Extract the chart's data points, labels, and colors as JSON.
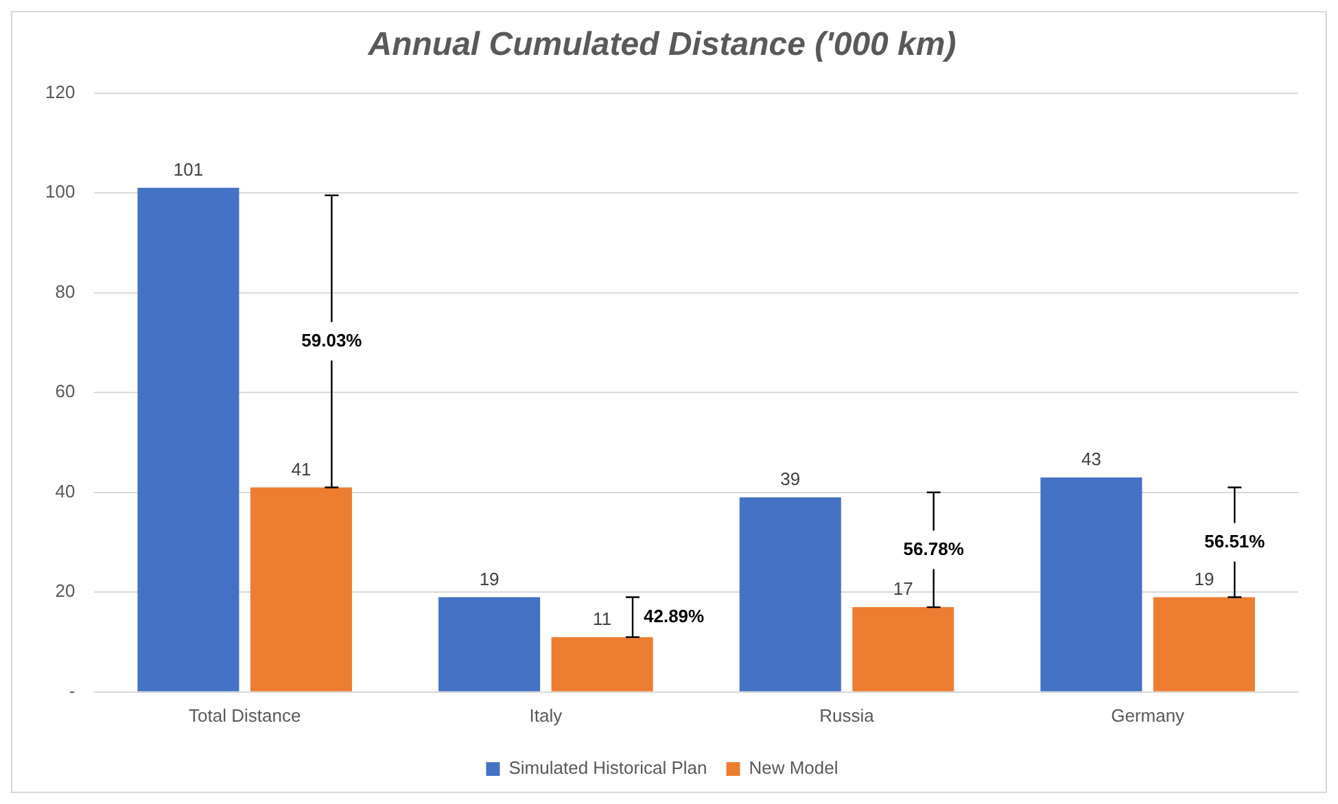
{
  "chart_data": {
    "type": "bar",
    "title": "Annual Cumulated Distance ('000 km)",
    "categories": [
      "Total Distance",
      "Italy",
      "Russia",
      "Germany"
    ],
    "series": [
      {
        "name": "Simulated Historical Plan",
        "color": "#4472c4",
        "values": [
          101,
          19,
          39,
          43
        ]
      },
      {
        "name": "New Model",
        "color": "#ed7d31",
        "values": [
          41,
          11,
          17,
          19
        ],
        "errors": [
          [
            41,
            99.5
          ],
          [
            11,
            19
          ],
          [
            17,
            40
          ],
          [
            19,
            41
          ]
        ]
      }
    ],
    "ylim": [
      0,
      120
    ],
    "yticks": [
      {
        "value": 0,
        "label": "-"
      },
      20,
      40,
      60,
      80,
      100,
      120
    ],
    "grid": "y",
    "legend": "bottom",
    "data_labels": true,
    "annotations": [
      "59.03%",
      "42.89%",
      "56.78%",
      "56.51%"
    ]
  }
}
